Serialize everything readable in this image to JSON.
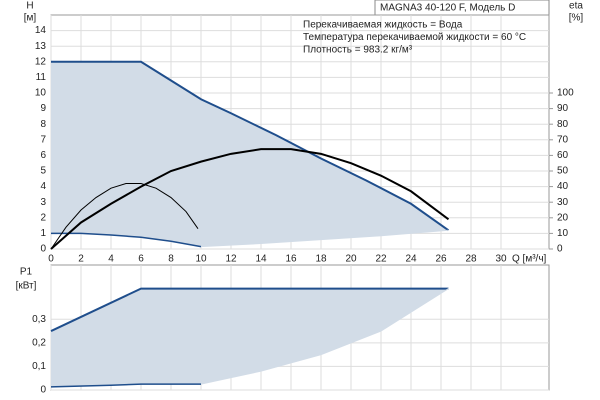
{
  "chart_data": [
    {
      "type": "line",
      "title": "MAGNA3 40-120 F, Модель D",
      "annotations": [
        "Перекачиваемая жидкость = Вода",
        "Температура перекачиваемой жидкости = 60 °C",
        "Плотность = 983.2 кг/м³"
      ],
      "y_label": "H",
      "y_unit": "[м]",
      "y2_label": "eta",
      "y2_unit": "[%]",
      "x_label": "Q [м³/ч]",
      "xlim": [
        0,
        33.2
      ],
      "xticks": [
        0,
        2,
        4,
        6,
        8,
        10,
        12,
        14,
        16,
        18,
        20,
        22,
        24,
        26,
        28,
        30
      ],
      "ylim": [
        0,
        15
      ],
      "yticks": [
        0,
        1,
        2,
        3,
        4,
        5,
        6,
        7,
        8,
        9,
        10,
        11,
        12,
        13,
        14
      ],
      "y2lim": [
        0,
        150
      ],
      "y2ticks": [
        0,
        10,
        20,
        30,
        40,
        50,
        60,
        70,
        80,
        90,
        100
      ],
      "grid": true,
      "range_color": "#d2dce7",
      "range_series": [
        0,
        2,
        1
      ],
      "series": [
        {
          "color": "#1f4e8c",
          "width": 2,
          "x": [
            0,
            6,
            8,
            10,
            12,
            15,
            18,
            21,
            24,
            26.5
          ],
          "values": [
            12,
            12,
            10.8,
            9.6,
            8.7,
            7.3,
            5.8,
            4.4,
            2.9,
            1.2
          ]
        },
        {
          "color": "#1f4e8c",
          "width": 1.5,
          "x": [
            0,
            2,
            4,
            6,
            8,
            10
          ],
          "values": [
            1,
            1,
            0.9,
            0.75,
            0.5,
            0.15
          ]
        },
        {
          "color": "#d2dce7",
          "width": 1,
          "x": [
            10,
            14,
            18,
            22,
            26.5
          ],
          "values": [
            0.15,
            0.35,
            0.6,
            0.85,
            1.2
          ]
        },
        {
          "color": "#000000",
          "width": 2,
          "axis": "y2",
          "x": [
            0,
            2,
            4,
            6,
            8,
            10,
            12,
            14,
            16,
            18,
            20,
            22,
            24,
            26.5
          ],
          "values": [
            0,
            17,
            29,
            40,
            50,
            56,
            61,
            64,
            64,
            61,
            55,
            47,
            37,
            19
          ]
        },
        {
          "color": "#000000",
          "width": 1,
          "axis": "y2",
          "x": [
            0,
            1,
            2,
            3,
            4,
            5,
            6,
            7,
            8,
            9,
            9.8
          ],
          "values": [
            0,
            14,
            25,
            33,
            39,
            42,
            42,
            39,
            33,
            24,
            13
          ]
        }
      ]
    },
    {
      "type": "line",
      "y_label": "P1",
      "y_unit": "[кВт]",
      "xlim": [
        0,
        33.2
      ],
      "xticks": [
        0,
        2,
        4,
        6,
        8,
        10,
        12,
        14,
        16,
        18,
        20,
        22,
        24,
        26,
        28,
        30
      ],
      "x_tick_labels": false,
      "ylim": [
        0,
        0.53
      ],
      "yticks": [
        0,
        {
          "value": 0.1,
          "label": "0,1"
        },
        {
          "value": 0.2,
          "label": "0,2"
        },
        {
          "value": 0.3,
          "label": "0,3"
        }
      ],
      "grid": true,
      "range_color": "#d2dce7",
      "range_series": [
        0,
        2,
        1
      ],
      "series": [
        {
          "color": "#1f4e8c",
          "width": 2,
          "x": [
            0,
            6,
            26.5
          ],
          "values": [
            0.25,
            0.43,
            0.43
          ]
        },
        {
          "color": "#1f4e8c",
          "width": 1.5,
          "x": [
            0,
            4,
            6,
            10
          ],
          "values": [
            0.013,
            0.02,
            0.025,
            0.025
          ]
        },
        {
          "color": "#d2dce7",
          "width": 1,
          "x": [
            10,
            14,
            18,
            22,
            26.5
          ],
          "values": [
            0.025,
            0.08,
            0.15,
            0.25,
            0.43
          ]
        }
      ]
    }
  ]
}
